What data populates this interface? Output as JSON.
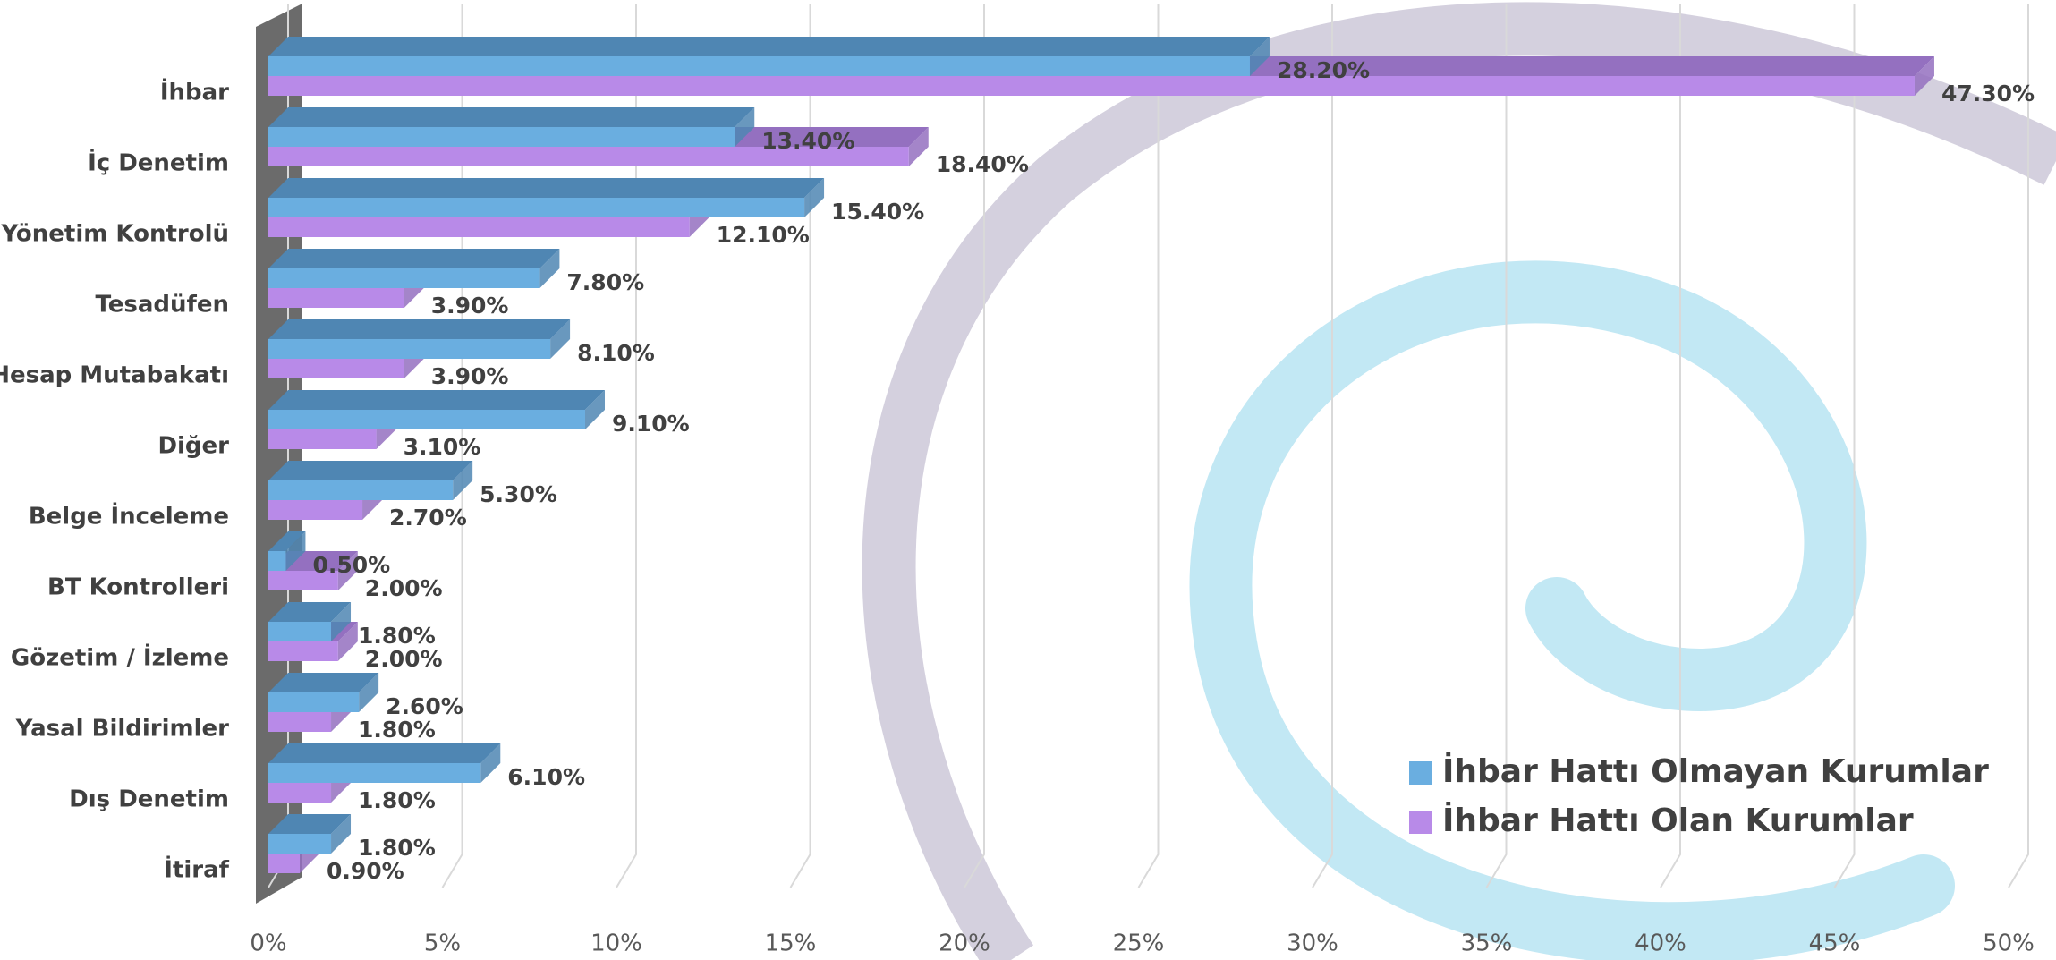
{
  "chart_data": {
    "type": "bar",
    "orientation": "horizontal",
    "three_d": true,
    "categories": [
      "İhbar",
      "İç Denetim",
      "Yönetim Kontrolü",
      "Tesadüfen",
      "Hesap Mutabakatı",
      "Diğer",
      "Belge İnceleme",
      "BT Kontrolleri",
      "Gözetim / İzleme",
      "Yasal Bildirimler",
      "Dış Denetim",
      "İtiraf"
    ],
    "series": [
      {
        "name": "İhbar Hattı Olmayan Kurumlar",
        "color": "#6aaee0",
        "top_color": "#4f86b3",
        "values": [
          28.2,
          13.4,
          15.4,
          7.8,
          8.1,
          9.1,
          5.3,
          0.5,
          1.8,
          2.6,
          6.1,
          1.8
        ],
        "value_labels": [
          "28.20%",
          "13.40%",
          "15.40%",
          "7.80%",
          "8.10%",
          "9.10%",
          "5.30%",
          "0.50%",
          "1.80%",
          "2.60%",
          "6.10%",
          "1.80%"
        ]
      },
      {
        "name": "İhbar Hattı Olan Kurumlar",
        "color": "#b88ae8",
        "top_color": "#9470c0",
        "values": [
          47.3,
          18.4,
          12.1,
          3.9,
          3.9,
          3.1,
          2.7,
          2.0,
          2.0,
          1.8,
          1.8,
          0.9
        ],
        "value_labels": [
          "47.30%",
          "18.40%",
          "12.10%",
          "3.90%",
          "3.90%",
          "3.10%",
          "2.70%",
          "2.00%",
          "2.00%",
          "1.80%",
          "1.80%",
          "0.90%"
        ]
      }
    ],
    "xlim": [
      0,
      50
    ],
    "xticks": [
      {
        "value": 0,
        "label": "0%"
      },
      {
        "value": 5,
        "label": "5%"
      },
      {
        "value": 10,
        "label": "10%"
      },
      {
        "value": 15,
        "label": "15%"
      },
      {
        "value": 20,
        "label": "20%"
      },
      {
        "value": 25,
        "label": "25%"
      },
      {
        "value": 30,
        "label": "30%"
      },
      {
        "value": 35,
        "label": "35%"
      },
      {
        "value": 40,
        "label": "40%"
      },
      {
        "value": 45,
        "label": "45%"
      },
      {
        "value": 50,
        "label": "50%"
      }
    ],
    "grid": true,
    "legend": "lower right"
  }
}
